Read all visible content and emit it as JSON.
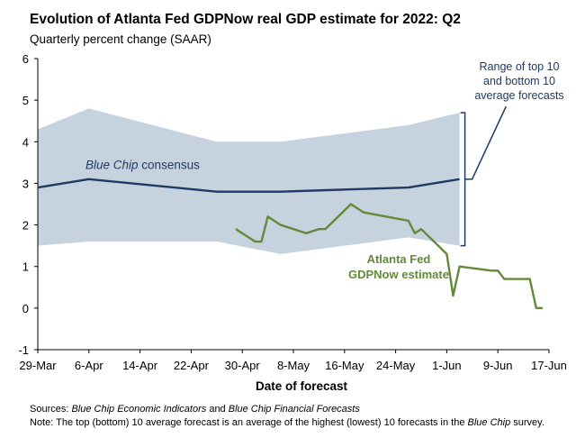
{
  "chart_data": {
    "type": "line",
    "title": "Evolution of Atlanta Fed GDPNow real GDP estimate for 2022: Q2",
    "subtitle": "Quarterly percent change (SAAR)",
    "xlabel": "Date of forecast",
    "ylabel": "",
    "ylim": [
      -1,
      6
    ],
    "yticks": [
      -1,
      0,
      1,
      2,
      3,
      4,
      5,
      6
    ],
    "x_tick_labels": [
      "29-Mar",
      "6-Apr",
      "14-Apr",
      "22-Apr",
      "30-Apr",
      "8-May",
      "16-May",
      "24-May",
      "1-Jun",
      "9-Jun",
      "17-Jun"
    ],
    "x_tick_dates": [
      "2022-03-29",
      "2022-04-06",
      "2022-04-14",
      "2022-04-22",
      "2022-04-30",
      "2022-05-08",
      "2022-05-16",
      "2022-05-24",
      "2022-06-01",
      "2022-06-09",
      "2022-06-17"
    ],
    "xlim": [
      "2022-03-29",
      "2022-06-17"
    ],
    "grid": false,
    "series": [
      {
        "name": "Blue Chip consensus",
        "color": "#1f3a63",
        "x": [
          "2022-03-29",
          "2022-04-06",
          "2022-04-26",
          "2022-05-06",
          "2022-05-16",
          "2022-05-26",
          "2022-06-03"
        ],
        "values": [
          2.9,
          3.1,
          2.8,
          2.8,
          2.85,
          2.9,
          3.1
        ]
      },
      {
        "name": "GDPNow estimate",
        "color": "#63893a",
        "x": [
          "2022-04-29",
          "2022-05-02",
          "2022-05-03",
          "2022-05-04",
          "2022-05-06",
          "2022-05-10",
          "2022-05-12",
          "2022-05-13",
          "2022-05-17",
          "2022-05-19",
          "2022-05-26",
          "2022-05-27",
          "2022-05-28",
          "2022-06-01",
          "2022-06-02",
          "2022-06-03",
          "2022-06-08",
          "2022-06-09",
          "2022-06-10",
          "2022-06-14",
          "2022-06-15",
          "2022-06-16"
        ],
        "values": [
          1.9,
          1.6,
          1.6,
          2.2,
          2.0,
          1.8,
          1.9,
          1.9,
          2.5,
          2.3,
          2.1,
          1.8,
          1.9,
          1.3,
          0.3,
          1.0,
          0.9,
          0.9,
          0.7,
          0.7,
          0.0,
          0.0
        ]
      },
      {
        "name": "Range of top 10 and bottom 10 average forecasts",
        "type": "area",
        "color": "#c6d3de",
        "x": [
          "2022-03-29",
          "2022-04-06",
          "2022-04-26",
          "2022-05-06",
          "2022-05-26",
          "2022-06-03"
        ],
        "upper": [
          4.3,
          4.8,
          4.0,
          4.0,
          4.4,
          4.7
        ],
        "lower": [
          1.5,
          1.6,
          1.6,
          1.3,
          1.7,
          1.5
        ]
      }
    ],
    "annotations": {
      "range_label": [
        "Range of top 10",
        "and bottom 10",
        "average forecasts"
      ],
      "consensus_prefix": "Blue Chip",
      "consensus_suffix": " consensus",
      "gdpnow_label": [
        "Atlanta Fed",
        "GDPNow estimate"
      ]
    }
  },
  "footer": {
    "sources_label": "Sources: ",
    "sources_source1": "Blue Chip Economic Indicators",
    "sources_and": " and ",
    "sources_source2": "Blue Chip Financial Forecasts",
    "note_label": "Note: ",
    "note_text": "The top (bottom) 10 average forecast is an average of the highest (lowest) 10 forecasts in the ",
    "note_italic": "Blue Chip",
    "note_end": " survey."
  }
}
